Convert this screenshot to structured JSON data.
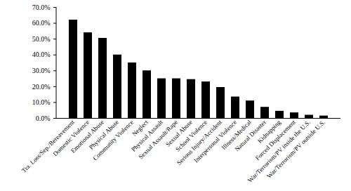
{
  "chart_data": {
    "type": "bar",
    "categories": [
      "Tra. Loss/Sep./Bereavement",
      "Domestic Violence",
      "Emotional Abuse",
      "Physical Abuse",
      "Community Violence",
      "Neglect",
      "Physical Assault",
      "Sexual Assault/Rape",
      "Sexual Abuse",
      "School Violence",
      "Serious Injury/Accident",
      "Interpersonal Violence",
      "Illness/Medical",
      "Natural Disaster",
      "Kidnapping",
      "Forced Displacement",
      "War/Terrorism/PV inside the U.S.",
      "War/Terrorism/PV outside U.S."
    ],
    "values": [
      62,
      54,
      50.5,
      40,
      35,
      30,
      25,
      25,
      24.5,
      23,
      19.5,
      13.5,
      11,
      7,
      4.5,
      3.5,
      2,
      1.5
    ],
    "color": "#000000",
    "ylim": [
      0,
      70
    ],
    "yticks": [
      {
        "value": 0,
        "label": "0.0%"
      },
      {
        "value": 10,
        "label": "10.0%"
      },
      {
        "value": 20,
        "label": "20.0%"
      },
      {
        "value": 30,
        "label": "30.0%"
      },
      {
        "value": 40,
        "label": "40.0%"
      },
      {
        "value": 50,
        "label": "50.0%"
      },
      {
        "value": 60,
        "label": "60.0%"
      },
      {
        "value": 70,
        "label": "70.0%"
      }
    ],
    "grid": false
  }
}
